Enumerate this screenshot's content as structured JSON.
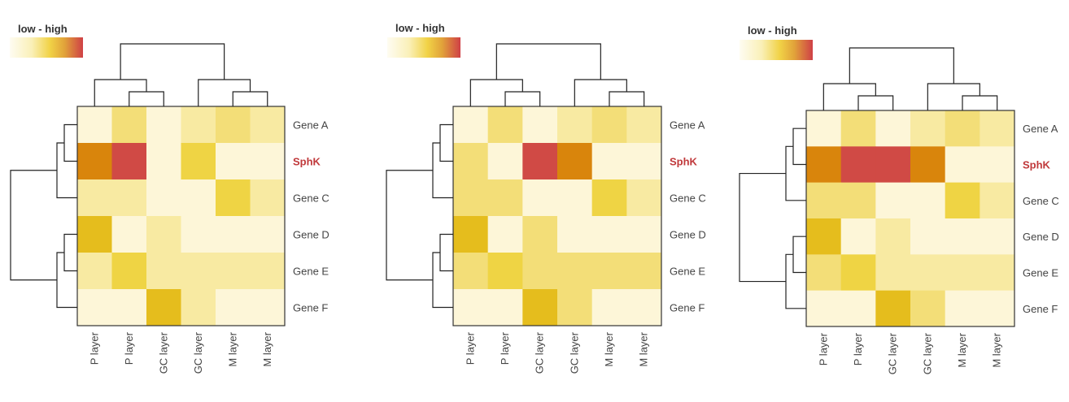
{
  "legend_label": "low - high",
  "colors": {
    "scale": [
      "#fdf6d8",
      "#f8eaa2",
      "#f3de78",
      "#efd444",
      "#e5bd1d",
      "#d9850c",
      "#d04a45"
    ],
    "highlight_text": "#c0393b"
  },
  "chart_data": [
    {
      "type": "heatmap",
      "title": "",
      "legend": "low - high",
      "rows": [
        "Gene A",
        "SphK",
        "Gene C",
        "Gene D",
        "Gene E",
        "Gene F"
      ],
      "highlight_row": "SphK",
      "columns": [
        "P layer",
        "P layer",
        "GC layer",
        "GC layer",
        "M layer",
        "M layer"
      ],
      "value_scale": "0 (low) to 6 (high)",
      "values": [
        [
          0,
          2,
          0,
          1,
          2,
          1
        ],
        [
          5,
          6,
          0,
          3,
          0,
          0
        ],
        [
          1,
          1,
          0,
          0,
          3,
          1
        ],
        [
          4,
          0,
          1,
          0,
          0,
          0
        ],
        [
          1,
          3,
          1,
          1,
          1,
          1
        ],
        [
          0,
          0,
          4,
          1,
          0,
          0
        ]
      ],
      "col_dendrogram": "((1,(2,3)),((4,(5,6))))",
      "row_dendrogram": "(((1,2),3),((4,5),6))"
    },
    {
      "type": "heatmap",
      "title": "",
      "legend": "low - high",
      "rows": [
        "Gene A",
        "SphK",
        "Gene C",
        "Gene D",
        "Gene E",
        "Gene F"
      ],
      "highlight_row": "SphK",
      "columns": [
        "P layer",
        "P layer",
        "GC layer",
        "GC layer",
        "M layer",
        "M layer"
      ],
      "value_scale": "0 (low) to 6 (high)",
      "values": [
        [
          0,
          2,
          0,
          1,
          2,
          1
        ],
        [
          2,
          0,
          6,
          5,
          0,
          0
        ],
        [
          2,
          2,
          0,
          0,
          3,
          1
        ],
        [
          4,
          0,
          2,
          0,
          0,
          0
        ],
        [
          2,
          3,
          2,
          2,
          2,
          2
        ],
        [
          0,
          0,
          4,
          2,
          0,
          0
        ]
      ],
      "col_dendrogram": "((1,(2,3)),((4,(5,6))))",
      "row_dendrogram": "(((1,2),3),((4,5),6))"
    },
    {
      "type": "heatmap",
      "title": "",
      "legend": "low - high",
      "rows": [
        "Gene A",
        "SphK",
        "Gene C",
        "Gene D",
        "Gene E",
        "Gene F"
      ],
      "highlight_row": "SphK",
      "columns": [
        "P layer",
        "P layer",
        "GC layer",
        "GC layer",
        "M layer",
        "M layer"
      ],
      "value_scale": "0 (low) to 6 (high)",
      "values": [
        [
          0,
          2,
          0,
          1,
          2,
          1
        ],
        [
          5,
          6,
          6,
          5,
          0,
          0
        ],
        [
          2,
          2,
          0,
          0,
          3,
          1
        ],
        [
          4,
          0,
          1,
          0,
          0,
          0
        ],
        [
          2,
          3,
          1,
          1,
          1,
          1
        ],
        [
          0,
          0,
          4,
          2,
          0,
          0
        ]
      ],
      "col_dendrogram": "((1,(2,3)),((4,(5,6))))",
      "row_dendrogram": "(((1,2),3),((4,5),6))"
    }
  ]
}
